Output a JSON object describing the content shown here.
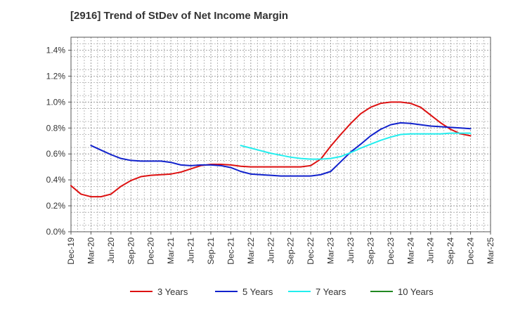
{
  "chart_data": {
    "type": "line",
    "title": "[2916]  Trend of StDev of Net Income Margin",
    "xlabel": "",
    "ylabel": "",
    "categories": [
      "Dec-19",
      "Mar-20",
      "Jun-20",
      "Sep-20",
      "Dec-20",
      "Mar-21",
      "Jun-21",
      "Sep-21",
      "Dec-21",
      "Mar-22",
      "Jun-22",
      "Sep-22",
      "Dec-22",
      "Mar-23",
      "Jun-23",
      "Sep-23",
      "Dec-23",
      "Mar-24",
      "Jun-24",
      "Sep-24",
      "Dec-24",
      "Mar-25"
    ],
    "yticks": [
      "0.0%",
      "0.2%",
      "0.4%",
      "0.6%",
      "0.8%",
      "1.0%",
      "1.2%",
      "1.4%"
    ],
    "ylim": [
      0,
      1.5
    ],
    "grid": true,
    "legend_position": "bottom",
    "series": [
      {
        "name": "3 Years",
        "color": "#dd1111",
        "x": [
          0,
          0.5,
          1,
          1.5,
          2,
          2.5,
          3,
          3.5,
          4,
          4.5,
          5,
          5.5,
          6,
          6.5,
          7,
          7.5,
          8,
          8.5,
          9,
          9.5,
          10,
          10.5,
          11,
          11.5,
          12,
          12.5,
          13,
          13.5,
          14,
          14.5,
          15,
          15.5,
          16,
          16.5,
          17,
          17.5,
          18,
          18.5,
          19,
          19.5,
          20
        ],
        "values": [
          0.355,
          0.29,
          0.27,
          0.27,
          0.29,
          0.35,
          0.395,
          0.425,
          0.435,
          0.44,
          0.445,
          0.46,
          0.485,
          0.51,
          0.52,
          0.52,
          0.515,
          0.505,
          0.5,
          0.5,
          0.5,
          0.5,
          0.5,
          0.5,
          0.51,
          0.56,
          0.66,
          0.75,
          0.835,
          0.91,
          0.96,
          0.99,
          1.0,
          1.0,
          0.99,
          0.96,
          0.9,
          0.84,
          0.79,
          0.755,
          0.74
        ]
      },
      {
        "name": "5 Years",
        "color": "#1122cc",
        "x": [
          1,
          1.5,
          2,
          2.5,
          3,
          3.5,
          4,
          4.5,
          5,
          5.5,
          6,
          6.5,
          7,
          7.5,
          8,
          8.5,
          9,
          9.5,
          10,
          10.5,
          11,
          11.5,
          12,
          12.5,
          13,
          13.5,
          14,
          14.5,
          15,
          15.5,
          16,
          16.5,
          17,
          17.5,
          18,
          18.5,
          19,
          19.5,
          20
        ],
        "values": [
          0.665,
          0.63,
          0.595,
          0.565,
          0.55,
          0.545,
          0.545,
          0.545,
          0.535,
          0.515,
          0.51,
          0.515,
          0.515,
          0.51,
          0.495,
          0.465,
          0.445,
          0.44,
          0.435,
          0.43,
          0.43,
          0.43,
          0.43,
          0.44,
          0.465,
          0.54,
          0.615,
          0.675,
          0.74,
          0.79,
          0.825,
          0.84,
          0.835,
          0.825,
          0.815,
          0.81,
          0.805,
          0.8,
          0.795
        ]
      },
      {
        "name": "7 Years",
        "color": "#22eeee",
        "x": [
          8.5,
          9,
          9.5,
          10,
          10.5,
          11,
          11.5,
          12,
          12.5,
          13,
          13.5,
          14,
          14.5,
          15,
          15.5,
          16,
          16.5,
          17,
          17.5,
          18,
          18.5,
          19,
          19.5,
          20
        ],
        "values": [
          0.665,
          0.645,
          0.625,
          0.605,
          0.59,
          0.575,
          0.565,
          0.56,
          0.56,
          0.565,
          0.58,
          0.61,
          0.645,
          0.675,
          0.705,
          0.73,
          0.75,
          0.755,
          0.755,
          0.755,
          0.755,
          0.76,
          0.76,
          0.76
        ]
      },
      {
        "name": "10 Years",
        "color": "#228822",
        "x": [],
        "values": []
      }
    ]
  }
}
